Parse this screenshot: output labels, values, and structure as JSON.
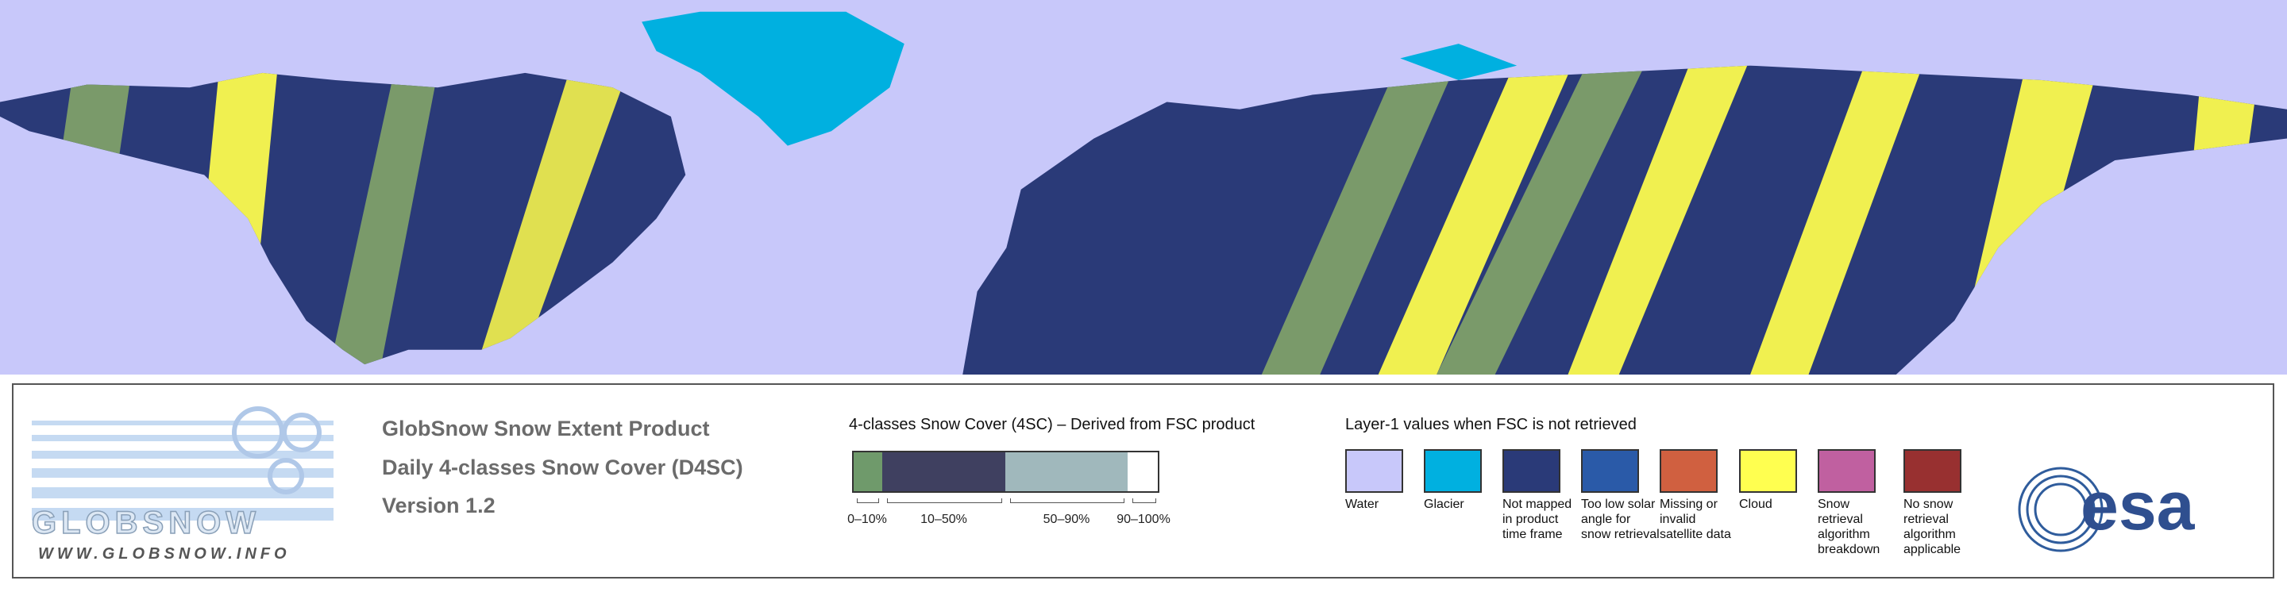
{
  "logo": {
    "name": "GLOBSNOW",
    "url": "WWW.GLOBSNOW.INFO"
  },
  "product": {
    "title": "GlobSnow Snow Extent Product",
    "subtitle": "Daily 4-classes Snow Cover (D4SC)",
    "version": "Version 1.2"
  },
  "snow_cover_legend": {
    "title": "4-classes Snow Cover (4SC) – Derived from FSC product",
    "classes": [
      {
        "label": "0–10%",
        "color": "#6f9a6b"
      },
      {
        "label": "10–50%",
        "color": "#3f4060"
      },
      {
        "label": "50–90%",
        "color": "#a0b8bc"
      },
      {
        "label": "90–100%",
        "color": "#ffffff"
      }
    ]
  },
  "layer1_legend": {
    "title": "Layer-1 values when FSC is not retrieved",
    "items": [
      {
        "label": "Water",
        "color": "#c8c8fa"
      },
      {
        "label": "Glacier",
        "color": "#00b0e0"
      },
      {
        "label": "Not mapped in product time frame",
        "color": "#2a3a78"
      },
      {
        "label": "Too low solar angle for snow retrieval",
        "color": "#2a5aa8"
      },
      {
        "label": "Missing or invalid satellite data",
        "color": "#d06040"
      },
      {
        "label": "Cloud",
        "color": "#ffff50"
      },
      {
        "label": "Snow retrieval algorithm breakdown",
        "color": "#c060a0"
      },
      {
        "label": "No snow retrieval algorithm applicable",
        "color": "#983030"
      }
    ]
  },
  "esa_logo": {
    "text": "esa"
  }
}
